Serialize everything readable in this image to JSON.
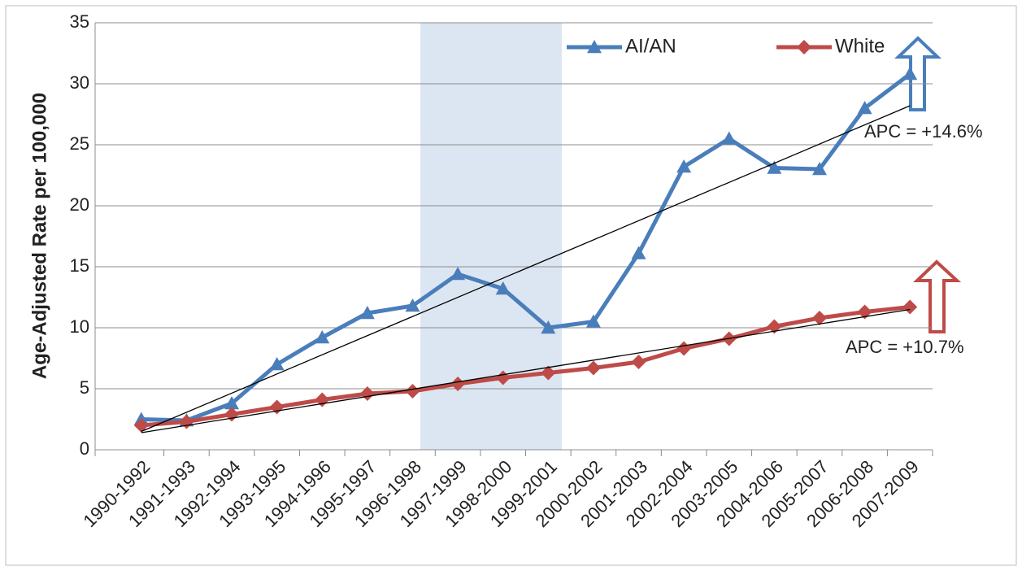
{
  "chart_data": {
    "type": "line",
    "y_label": "Age-Adjusted Rate per 100,000",
    "categories": [
      "1990-1992",
      "1991-1993",
      "1992-1994",
      "1993-1995",
      "1994-1996",
      "1995-1997",
      "1996-1998",
      "1997-1999",
      "1998-2000",
      "1999-2001",
      "2000-2002",
      "2001-2003",
      "2002-2004",
      "2003-2005",
      "2004-2006",
      "2005-2007",
      "2006-2008",
      "2007-2009"
    ],
    "series": [
      {
        "name": "AI/AN",
        "color": "#4a7ebb",
        "marker": "triangle",
        "values": [
          2.5,
          2.4,
          3.8,
          7.0,
          9.2,
          11.2,
          11.8,
          14.4,
          13.2,
          10.0,
          10.5,
          16.1,
          23.2,
          25.5,
          23.1,
          23.0,
          28.0,
          30.8
        ],
        "trend": [
          1.5,
          28.2
        ]
      },
      {
        "name": "White",
        "color": "#be4b48",
        "marker": "diamond",
        "values": [
          2.0,
          2.3,
          2.9,
          3.5,
          4.1,
          4.6,
          4.8,
          5.4,
          5.9,
          6.3,
          6.7,
          7.2,
          8.3,
          9.1,
          10.1,
          10.8,
          11.3,
          11.7
        ],
        "trend": [
          1.4,
          11.5
        ]
      }
    ],
    "annotations": [
      "APC = +14.6%",
      "APC = +10.7%"
    ],
    "ylim": [
      0,
      35
    ],
    "yticks": [
      0,
      5,
      10,
      15,
      20,
      25,
      30,
      35
    ],
    "grid": true
  }
}
